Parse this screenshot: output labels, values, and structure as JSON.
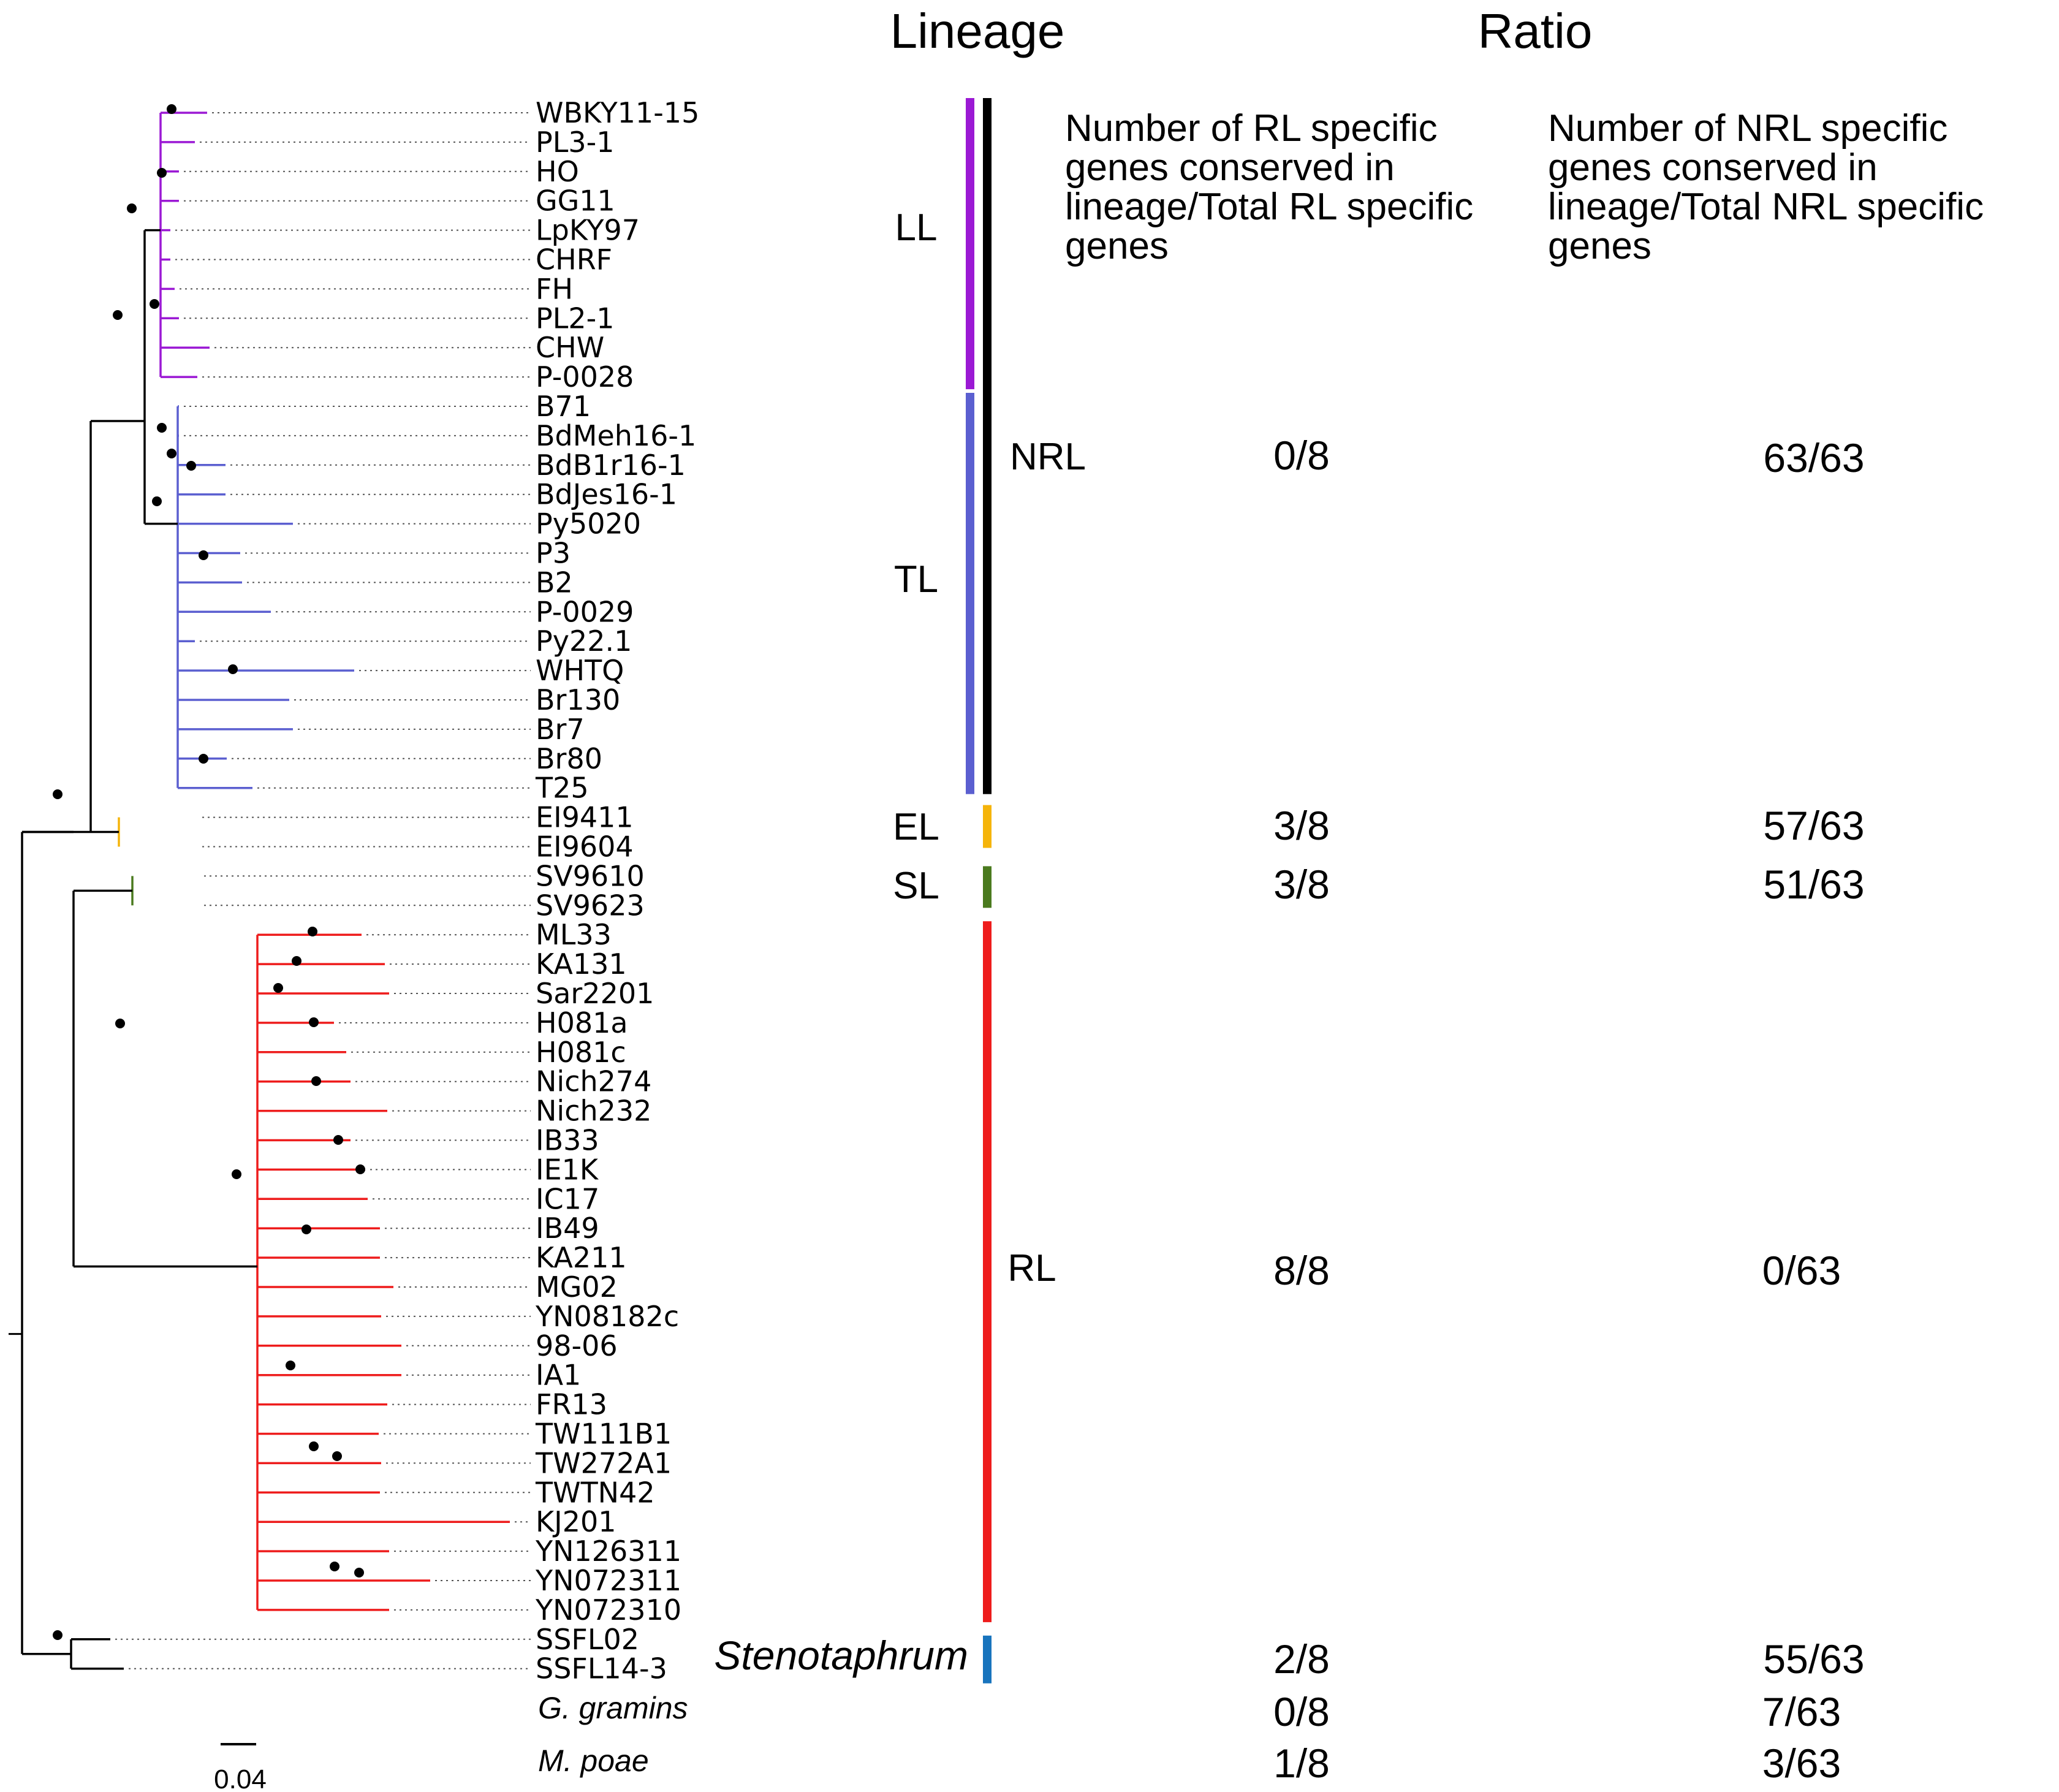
{
  "headers": {
    "lineage": "Lineage",
    "ratio": "Ratio"
  },
  "ratio_columns": {
    "rl_label": [
      "Number of RL specific",
      "genes conserved in",
      "lineage/Total RL specific",
      "genes"
    ],
    "nrl_label": [
      "Number of NRL specific",
      "genes conserved in",
      "lineage/Total NRL specific",
      "genes"
    ]
  },
  "taxa": [
    "WBKY11-15",
    "PL3-1",
    "HO",
    "GG11",
    "LpKY97",
    "CHRF",
    "FH",
    "PL2-1",
    "CHW",
    "P-0028",
    "B71",
    "BdMeh16-1",
    "BdB1r16-1",
    "BdJes16-1",
    "Py5020",
    "P3",
    "B2",
    "P-0029",
    "Py22.1",
    "WHTQ",
    "Br130",
    "Br7",
    "Br80",
    "T25",
    "EI9411",
    "EI9604",
    "SV9610",
    "SV9623",
    "ML33",
    "KA131",
    "Sar2201",
    "H081a",
    "H081c",
    "Nich274",
    "Nich232",
    "IB33",
    "IE1K",
    "IC17",
    "IB49",
    "KA211",
    "MG02",
    "YN08182c",
    "98-06",
    "IA1",
    "FR13",
    "TW111B1",
    "TW272A1",
    "TWTN42",
    "KJ201",
    "YN126311",
    "YN072311",
    "YN072310",
    "SSFL02",
    "SSFL14-3"
  ],
  "lineages": [
    {
      "code": "LL",
      "color": "#9b19d4",
      "from": 0,
      "to": 9
    },
    {
      "code": "TL",
      "color": "#5b5fd0",
      "from": 10,
      "to": 23
    },
    {
      "code": "EL",
      "color": "#f5b40a",
      "from": 24,
      "to": 25
    },
    {
      "code": "SL",
      "color": "#4a7a1e",
      "from": 26,
      "to": 27
    },
    {
      "code": "RL",
      "color": "#ee1c1c",
      "from": 28,
      "to": 51
    },
    {
      "code": "Stenotaphrum",
      "color": "#1874bd",
      "from": 52,
      "to": 53
    }
  ],
  "nrl_group": {
    "label": "NRL",
    "color": "#000000"
  },
  "ratios": [
    {
      "group": "NRL",
      "rl": "0/8",
      "nrl": "63/63"
    },
    {
      "group": "EL",
      "rl": "3/8",
      "nrl": "57/63"
    },
    {
      "group": "SL",
      "rl": "3/8",
      "nrl": "51/63"
    },
    {
      "group": "RL",
      "rl": "8/8",
      "nrl": "0/63"
    },
    {
      "group": "Stenotaphrum",
      "rl": "2/8",
      "nrl": "55/63"
    },
    {
      "group": "G. gramins",
      "rl": "0/8",
      "nrl": "7/63"
    },
    {
      "group": "M. poae",
      "rl": "1/8",
      "nrl": "3/63"
    }
  ],
  "outgroups": [
    "G. gramins",
    "M. poae"
  ],
  "scale_bar": {
    "label": "0.04"
  }
}
